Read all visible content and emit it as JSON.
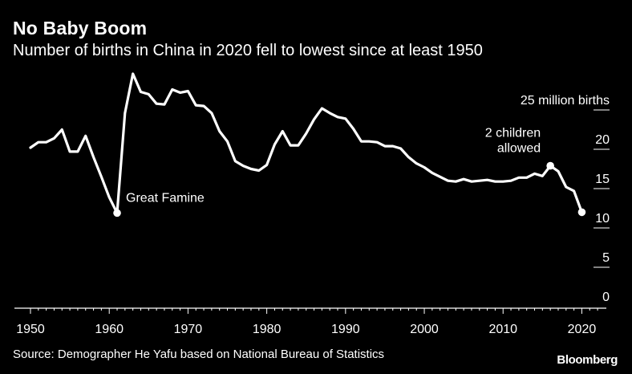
{
  "title": "No Baby Boom",
  "subtitle": "Number of births in China in 2020 fell to lowest since at least 1950",
  "source": "Source: Demographer He Yafu based on National Bureau of Statistics",
  "brand": "Bloomberg",
  "colors": {
    "background": "#000000",
    "line": "#ffffff",
    "text": "#ffffff"
  },
  "chart_data": {
    "type": "line",
    "title": "No Baby Boom",
    "subtitle": "Number of births in China in 2020 fell to lowest since at least 1950",
    "ylabel": "25 million births",
    "xlim": [
      1949,
      2023
    ],
    "ylim": [
      0,
      25
    ],
    "x_ticks": [
      1950,
      1960,
      1970,
      1980,
      1990,
      2000,
      2010,
      2020
    ],
    "y_ticks": [
      {
        "value": 0,
        "label": "0"
      },
      {
        "value": 5,
        "label": "5"
      },
      {
        "value": 10,
        "label": "10"
      },
      {
        "value": 15,
        "label": "15"
      },
      {
        "value": 20,
        "label": "20"
      },
      {
        "value": 25,
        "label": "25 million births"
      }
    ],
    "grid": "y-ticks-right",
    "series": [
      {
        "x": [
          1950,
          1951,
          1952,
          1953,
          1954,
          1955,
          1956,
          1957,
          1958,
          1959,
          1960,
          1961,
          1962,
          1963,
          1964,
          1965,
          1966,
          1967,
          1968,
          1969,
          1970,
          1971,
          1972,
          1973,
          1974,
          1975,
          1976,
          1977,
          1978,
          1979,
          1980,
          1981,
          1982,
          1983,
          1984,
          1985,
          1986,
          1987,
          1988,
          1989,
          1990,
          1991,
          1992,
          1993,
          1994,
          1995,
          1996,
          1997,
          1998,
          1999,
          2000,
          2001,
          2002,
          2003,
          2004,
          2005,
          2006,
          2007,
          2008,
          2009,
          2010,
          2011,
          2012,
          2013,
          2014,
          2015,
          2016,
          2017,
          2018,
          2019,
          2020
        ],
        "values": [
          20.2,
          20.9,
          20.9,
          21.4,
          22.5,
          19.7,
          19.7,
          21.7,
          19.0,
          16.5,
          13.9,
          11.9,
          24.6,
          29.6,
          27.3,
          27.0,
          25.8,
          25.7,
          27.6,
          27.2,
          27.4,
          25.6,
          25.5,
          24.6,
          22.3,
          21.0,
          18.5,
          17.9,
          17.5,
          17.3,
          18.0,
          20.6,
          22.3,
          20.5,
          20.5,
          22.0,
          23.8,
          25.2,
          24.6,
          24.1,
          23.9,
          22.6,
          21.0,
          21.0,
          20.9,
          20.4,
          20.4,
          20.1,
          19.0,
          18.2,
          17.7,
          17.0,
          16.5,
          16.0,
          15.9,
          16.2,
          15.9,
          16.0,
          16.1,
          15.9,
          15.9,
          16.0,
          16.4,
          16.4,
          16.9,
          16.6,
          17.9,
          17.2,
          15.2,
          14.7,
          12.0
        ]
      }
    ],
    "highlight_points": [
      {
        "x": 1961,
        "y": 11.9
      },
      {
        "x": 2016,
        "y": 17.9
      },
      {
        "x": 2020,
        "y": 12.0
      }
    ],
    "annotations": [
      {
        "lines": [
          "Great Famine"
        ],
        "x": 1961,
        "y": 11.9
      },
      {
        "lines": [
          "2 children",
          "allowed"
        ],
        "x": 2016,
        "y": 17.9
      }
    ]
  }
}
